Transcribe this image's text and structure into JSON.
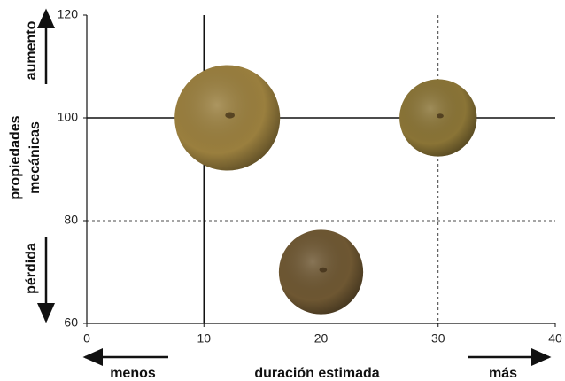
{
  "chart_data": {
    "type": "bubble",
    "ylabel": [
      "propiedades",
      "mecánicas"
    ],
    "xlabel": "duración estimada",
    "annotations": {
      "up": "aumento",
      "down": "pérdida",
      "left": "menos",
      "right": "más"
    },
    "x": [
      12,
      30,
      20
    ],
    "values": [
      100,
      100,
      70
    ],
    "sizes": [
      4.5,
      3.3,
      3.6
    ],
    "colors": [
      "#9a7f3e",
      "#8a7436",
      "#6e5732"
    ],
    "xlim": [
      0,
      40
    ],
    "xticks": [
      0,
      10,
      20,
      30,
      40
    ],
    "ylim": [
      60,
      120
    ],
    "yticks": [
      60,
      80,
      100,
      120
    ],
    "vlines": [
      {
        "x": 10,
        "style": "solid"
      },
      {
        "x": 20,
        "style": "dashed"
      },
      {
        "x": 30,
        "style": "dashed"
      }
    ],
    "hlines": [
      {
        "y": 100,
        "style": "solid"
      },
      {
        "y": 80,
        "style": "dashed"
      }
    ]
  }
}
